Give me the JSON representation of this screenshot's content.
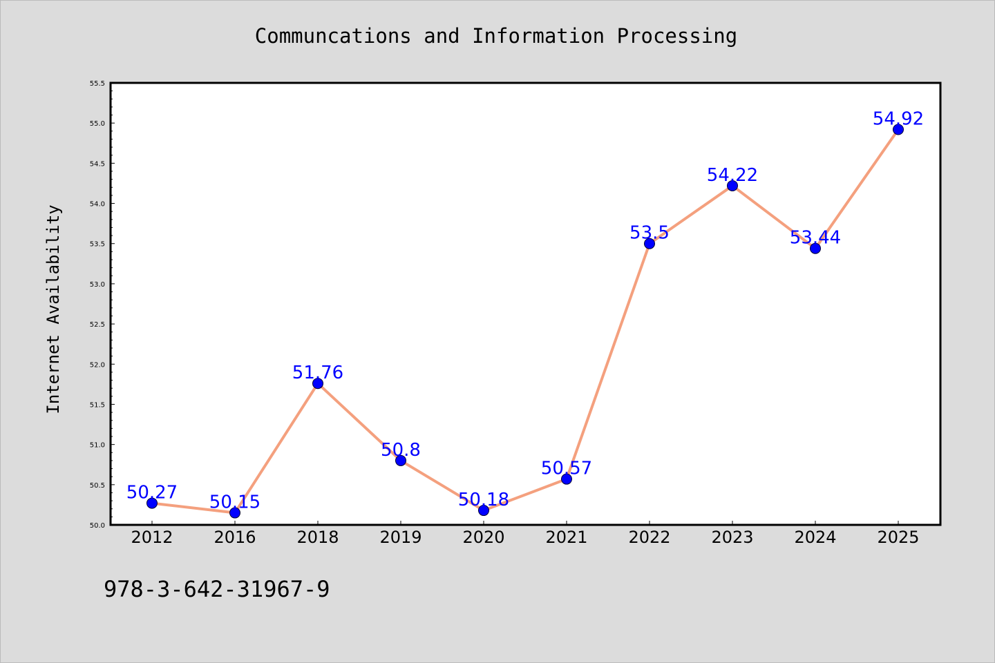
{
  "footer": {
    "isbn": "978-3-642-31967-9"
  },
  "colors": {
    "background": "#dcdcdc",
    "plot_background": "#ffffff",
    "line": "#f4a07e",
    "marker": "#0000ff",
    "label": "#0000ff"
  },
  "chart_data": {
    "type": "line",
    "title": "Communcations and Information Processing",
    "xlabel": "",
    "ylabel": "Internet Availability",
    "categories": [
      "2012",
      "2016",
      "2018",
      "2019",
      "2020",
      "2021",
      "2022",
      "2023",
      "2024",
      "2025"
    ],
    "series": [
      {
        "values": [
          50.27,
          50.15,
          51.76,
          50.8,
          50.18,
          50.57,
          53.5,
          54.22,
          53.44,
          54.92
        ],
        "labels": [
          "50.27",
          "50.15",
          "51.76",
          "50.8",
          "50.18",
          "50.57",
          "53.5",
          "54.22",
          "53.44",
          "54.92"
        ]
      }
    ],
    "ylim": [
      50.0,
      55.5
    ],
    "yticks": [
      "50.0",
      "50.5",
      "51.0",
      "51.5",
      "52.0",
      "52.5",
      "53.0",
      "53.5",
      "54.0",
      "54.5",
      "55.0",
      "55.5"
    ],
    "grid": false,
    "legend": "none"
  }
}
